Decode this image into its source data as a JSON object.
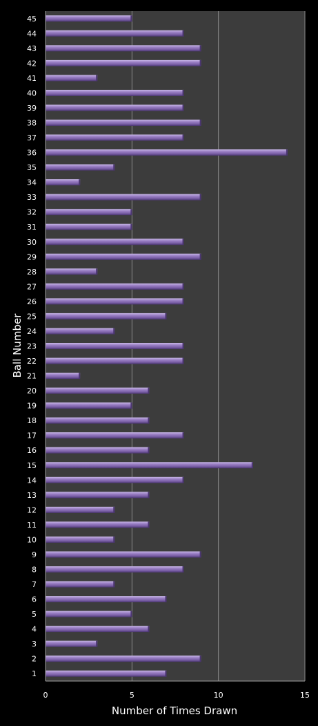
{
  "chart_data": {
    "type": "bar",
    "orientation": "horizontal",
    "title": "",
    "xlabel": "Number of Times Drawn",
    "ylabel": "Ball Number",
    "xlim": [
      0,
      15
    ],
    "xticks": [
      "0",
      "5",
      "10",
      "15"
    ],
    "grid": "vertical gridlines at major ticks",
    "legend": "none",
    "colors": {
      "page": "#000000",
      "plot": "#3c3c3c",
      "bar": "#7e64a8",
      "bar_light": "#b39ddb",
      "bar_dark": "#4a3570",
      "grid": "#8a8a8a",
      "text": "#ffffff"
    },
    "categories": [
      "1",
      "2",
      "3",
      "4",
      "5",
      "6",
      "7",
      "8",
      "9",
      "10",
      "11",
      "12",
      "13",
      "14",
      "15",
      "16",
      "17",
      "18",
      "19",
      "20",
      "21",
      "22",
      "23",
      "24",
      "25",
      "26",
      "27",
      "28",
      "29",
      "30",
      "31",
      "32",
      "33",
      "34",
      "35",
      "36",
      "37",
      "38",
      "39",
      "40",
      "41",
      "42",
      "43",
      "44",
      "45"
    ],
    "values": [
      7,
      9,
      3,
      6,
      5,
      7,
      4,
      8,
      9,
      4,
      6,
      4,
      6,
      8,
      12,
      6,
      8,
      6,
      5,
      6,
      2,
      8,
      8,
      4,
      7,
      8,
      8,
      3,
      9,
      8,
      5,
      5,
      9,
      2,
      4,
      14,
      8,
      9,
      8,
      8,
      3,
      9,
      9,
      8,
      5
    ]
  }
}
